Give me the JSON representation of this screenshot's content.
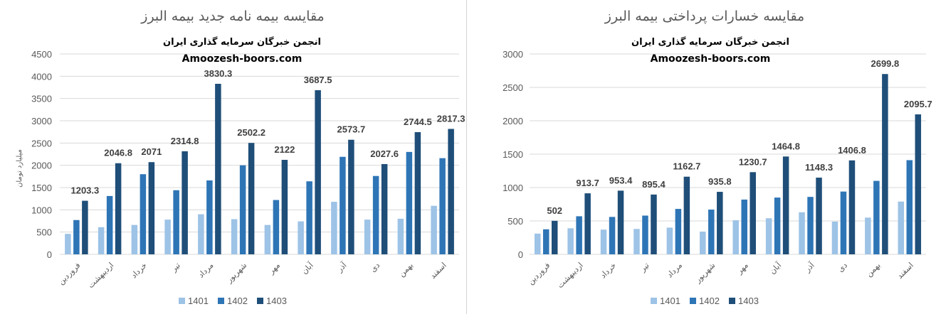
{
  "chart_data": [
    {
      "type": "bar",
      "title": "مقایسه بیمه نامه جدید بیمه البرز",
      "subtitle": "انجمن خبرگان سرمایه گذاری ایران",
      "site": "Amoozesh-boors.com",
      "ylabel": "میلیارد تومان",
      "xlabel": "",
      "ylim": [
        0,
        4500
      ],
      "yticks": [
        0,
        500,
        1000,
        1500,
        2000,
        2500,
        3000,
        3500,
        4000,
        4500
      ],
      "grid": true,
      "legend_position": "bottom",
      "categories": [
        "فروردین",
        "اردیبهشت",
        "خرداد",
        "تیر",
        "مرداد",
        "شهریور",
        "مهر",
        "آبان",
        "آذر",
        "دی",
        "بهمن",
        "اسفند"
      ],
      "series": [
        {
          "name": "1401",
          "color": "#9dc3e6",
          "values": [
            460,
            610,
            660,
            780,
            900,
            790,
            660,
            740,
            1180,
            780,
            800,
            1090
          ]
        },
        {
          "name": "1402",
          "color": "#2e75b6",
          "values": [
            770,
            1310,
            1800,
            1440,
            1660,
            2000,
            1220,
            1640,
            2190,
            1760,
            2300,
            2160
          ]
        },
        {
          "name": "1403",
          "color": "#1f4e79",
          "values": [
            1203.3,
            2046.8,
            2071,
            2314.8,
            3830.3,
            2502.2,
            2122,
            3687.5,
            2573.7,
            2027.6,
            2744.5,
            2817.3
          ]
        }
      ],
      "data_labels": [
        "1203.3",
        "2046.8",
        "2071",
        "2314.8",
        "3830.3",
        "2502.2",
        "2122",
        "3687.5",
        "2573.7",
        "2027.6",
        "2744.5",
        "2817.3"
      ]
    },
    {
      "type": "bar",
      "title": "مقایسه خسارات پرداختی بیمه البرز",
      "subtitle": "انجمن خبرگان سرمایه گذاری ایران",
      "site": "Amoozesh-boors.com",
      "ylabel": "",
      "xlabel": "",
      "ylim": [
        0,
        3000
      ],
      "yticks": [
        0,
        500,
        1000,
        1500,
        2000,
        2500,
        3000
      ],
      "grid": true,
      "legend_position": "bottom",
      "categories": [
        "فروردین",
        "اردیبهشت",
        "خرداد",
        "تیر",
        "مرداد",
        "شهریور",
        "مهر",
        "آبان",
        "آذر",
        "دی",
        "بهمن",
        "اسفند"
      ],
      "series": [
        {
          "name": "1401",
          "color": "#9dc3e6",
          "values": [
            310,
            390,
            370,
            380,
            400,
            340,
            510,
            540,
            630,
            490,
            550,
            790
          ]
        },
        {
          "name": "1402",
          "color": "#2e75b6",
          "values": [
            375,
            570,
            560,
            580,
            680,
            670,
            820,
            850,
            860,
            940,
            1100,
            1410
          ]
        },
        {
          "name": "1403",
          "color": "#1f4e79",
          "values": [
            502,
            913.7,
            953.4,
            895.4,
            1162.7,
            935.8,
            1230.7,
            1464.8,
            1148.3,
            1406.8,
            2699.8,
            2095.7
          ]
        }
      ],
      "data_labels": [
        "502",
        "913.7",
        "953.4",
        "895.4",
        "1162.7",
        "935.8",
        "1230.7",
        "1464.8",
        "1148.3",
        "1406.8",
        "2699.8",
        "2095.7"
      ]
    }
  ]
}
